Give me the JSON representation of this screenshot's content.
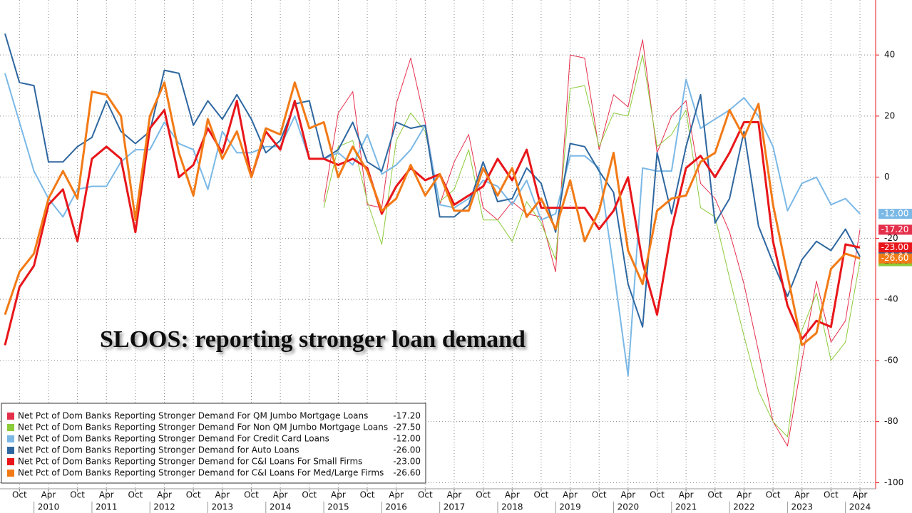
{
  "chart_data": {
    "type": "line",
    "title": "SLOOS: reporting stronger loan demand",
    "categories": [
      null,
      "Oct",
      null,
      "Apr",
      null,
      "Oct",
      null,
      "Apr",
      null,
      "Oct",
      null,
      "Apr",
      null,
      "Oct",
      null,
      "Apr",
      null,
      "Oct",
      null,
      "Apr",
      null,
      "Oct",
      null,
      "Apr",
      null,
      "Oct",
      null,
      "Apr",
      null,
      "Oct",
      null,
      "Apr",
      null,
      "Oct",
      null,
      "Apr",
      null,
      "Oct",
      null,
      "Apr",
      null,
      "Oct",
      null,
      "Apr",
      null,
      "Oct",
      null,
      "Apr",
      null,
      "Oct",
      null,
      "Apr",
      null,
      "Oct",
      null,
      "Apr",
      null,
      "Oct",
      null,
      "Apr"
    ],
    "years": [
      "2010",
      "2011",
      "2012",
      "2013",
      "2014",
      "2015",
      "2016",
      "2017",
      "2018",
      "2019",
      "2020",
      "2021",
      "2022",
      "2023",
      "2024"
    ],
    "ylim": [
      -102,
      58
    ],
    "yticks": [
      40,
      20,
      0,
      -20,
      -40,
      -60,
      -80,
      -100
    ],
    "grid": true,
    "legend": "bottom-left",
    "series": [
      {
        "name": "Net Pct of Dom Banks Reporting Stronger Demand For QM Jumbo Mortgage Loans",
        "color": "#e5304c",
        "line_width": 1,
        "legend_value": "-17.20",
        "values": [
          null,
          null,
          null,
          null,
          null,
          null,
          null,
          null,
          null,
          null,
          null,
          null,
          null,
          null,
          null,
          null,
          null,
          null,
          null,
          null,
          null,
          null,
          -8,
          21,
          28,
          -9,
          -10,
          24,
          39,
          18,
          -9,
          5,
          14,
          -10,
          -14,
          -8,
          -12,
          -13,
          -31,
          40,
          39,
          9,
          27,
          23,
          45,
          8,
          20,
          25,
          -2,
          -7,
          -18,
          -35,
          -57,
          -80,
          -88,
          -60,
          -34,
          -54,
          -47,
          -17.2
        ]
      },
      {
        "name": "Net Pct of Dom Banks Reporting Stronger Demand For Non QM Jumbo Mortgage Loans",
        "color": "#8ccb3a",
        "line_width": 1,
        "legend_value": "-27.50",
        "values": [
          null,
          null,
          null,
          null,
          null,
          null,
          null,
          null,
          null,
          null,
          null,
          null,
          null,
          null,
          null,
          null,
          null,
          null,
          null,
          null,
          null,
          null,
          -10,
          10,
          12,
          -8,
          -22,
          12,
          21,
          15,
          -8,
          -4,
          9,
          -14,
          -14,
          -21,
          -8,
          -15,
          -27,
          29,
          30,
          10,
          21,
          20,
          40,
          10,
          14,
          22,
          -10,
          -13,
          -33,
          -52,
          -70,
          -80,
          -85,
          -50,
          -38,
          -60,
          -54,
          -27.5
        ]
      },
      {
        "name": "Net Pct of Dom Banks Reporting Stronger Demand For Credit Card Loans",
        "color": "#7ab8e6",
        "line_width": 2,
        "legend_value": "-12.00",
        "values": [
          34,
          18,
          2,
          -7,
          -13,
          -4,
          -3,
          -3,
          5,
          9,
          9,
          18,
          11,
          9,
          -4,
          15,
          8,
          8,
          10,
          10,
          20,
          6,
          6,
          8,
          4,
          14,
          1,
          4,
          9,
          17,
          -9,
          -10,
          -7,
          -1,
          -3,
          -9,
          -1,
          -14,
          -12,
          7,
          7,
          3,
          -30,
          -65,
          3,
          2,
          2,
          32,
          16,
          19,
          22,
          26,
          20,
          10,
          -11,
          -2,
          0,
          -9,
          -7,
          -12
        ]
      },
      {
        "name": "Net Pct of Dom Banks Reporting Stronger Demand for Auto Loans",
        "color": "#2e67a0",
        "line_width": 2,
        "legend_value": "-26.00",
        "values": [
          47,
          31,
          30,
          5,
          5,
          10,
          13,
          25,
          15,
          11,
          15,
          35,
          34,
          17,
          25,
          19,
          27,
          19,
          8,
          12,
          24,
          25,
          6,
          9,
          18,
          5,
          2,
          18,
          16,
          17,
          -13,
          -13,
          -9,
          5,
          -8,
          -7,
          3,
          -2,
          -18,
          11,
          10,
          2,
          -5,
          -35,
          -49,
          8,
          -12,
          10,
          27,
          -15,
          -7,
          15,
          -16,
          -28,
          -39,
          -27,
          -21,
          -24,
          -17,
          -26
        ]
      },
      {
        "name": "Net Pct of Dom Banks Reporting Stronger Demand for C&I Loans For Small Firms",
        "color": "#e8161a",
        "line_width": 3,
        "legend_value": "-23.00",
        "values": [
          -55,
          -36,
          -29,
          -9,
          -4,
          -21,
          6,
          10,
          6,
          -18,
          16,
          22,
          0,
          4,
          16,
          8,
          25,
          0,
          15,
          9,
          25,
          6,
          6,
          4,
          6,
          3,
          -12,
          -3,
          3,
          -1,
          1,
          -9,
          -6,
          -3,
          6,
          -1,
          9,
          -10,
          -10,
          -10,
          -10,
          -17,
          -11,
          0,
          -28,
          -45,
          -17,
          3,
          7,
          0,
          8,
          18,
          18,
          -21,
          -42,
          -53,
          -47,
          -49,
          -22,
          -23
        ]
      },
      {
        "name": "Net Pct of Dom Banks Reporting Stronger Demand for C&I Loans For Med/Large Firms",
        "color": "#f27a16",
        "line_width": 3,
        "legend_value": "-26.60",
        "values": [
          -45,
          -31,
          -25,
          -7,
          2,
          -7,
          28,
          27,
          20,
          -14,
          20,
          31,
          8,
          -6,
          19,
          6,
          15,
          0,
          16,
          14,
          31,
          16,
          18,
          0,
          10,
          2,
          -11,
          -7,
          4,
          -6,
          1,
          -11,
          -11,
          3,
          -6,
          3,
          -13,
          -7,
          -17,
          -1,
          -21,
          -11,
          8,
          -24,
          -35,
          -11,
          -7,
          -6,
          5,
          8,
          22,
          13,
          24,
          -9,
          -32,
          -55,
          -51,
          -30,
          -25,
          -26.6
        ]
      }
    ]
  }
}
